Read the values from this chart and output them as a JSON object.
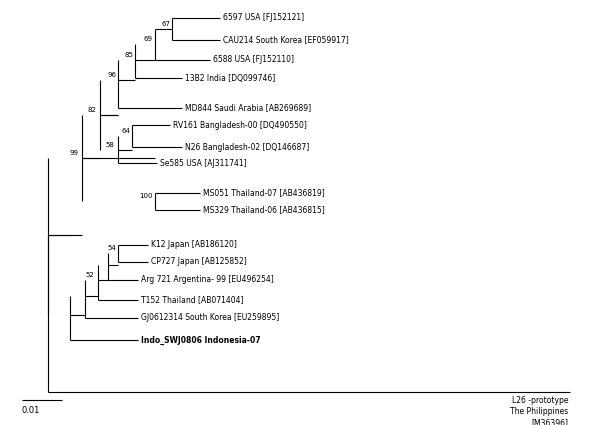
{
  "figsize": [
    6.0,
    4.25
  ],
  "dpi": 100,
  "bg_color": "#ffffff",
  "scale_bar_label": "0.01",
  "outgroup_label": "L26 -prototype\nThe Philippines\n[M36396]",
  "taxa": [
    "6597 USA [FJ152121]",
    "CAU214 South Korea [EF059917]",
    "6588 USA [FJ152110]",
    "13B2 India [DQ099746]",
    "MD844 Saudi Arabia [AB269689]",
    "RV161 Bangladesh-00 [DQ490550]",
    "N26 Bangladesh-02 [DQ146687]",
    "Se585 USA [AJ311741]",
    "MS051 Thailand-07 [AB436819]",
    "MS329 Thailand-06 [AB436815]",
    "K12 Japan [AB186120]",
    "CP727 Japan [AB125852]",
    "Arg 721 Argentina- 99 [EU496254]",
    "T152 Thailand [AB071404]",
    "GJ0612314 South Korea [EU259895]",
    "Indo_SWJ0806 Indonesia-07"
  ],
  "bold_taxa": [
    "Indo_SWJ0806 Indonesia-07"
  ],
  "tree_color": "#000000",
  "tree_lw": 0.8,
  "font_size_taxa": 5.5,
  "font_size_bootstrap": 5.0,
  "font_size_scalebar": 6.0,
  "font_size_outgroup": 5.5
}
